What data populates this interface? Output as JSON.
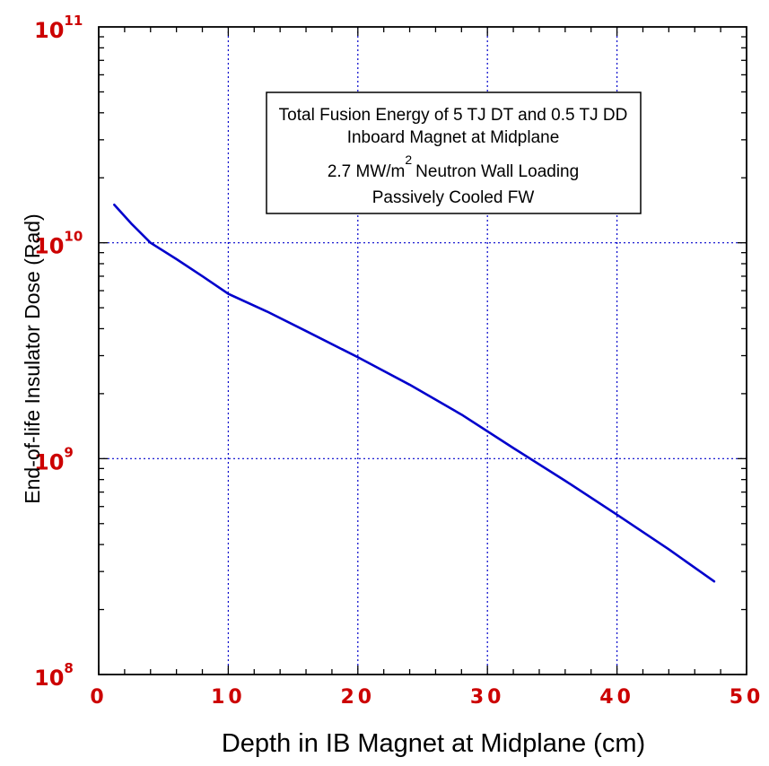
{
  "chart_data": {
    "type": "line",
    "title": "",
    "xlabel": "Depth in IB Magnet at Midplane (cm)",
    "ylabel": "End-of-life Insulator Dose (Rad)",
    "xlim": [
      0,
      50
    ],
    "ylim": [
      100000000.0,
      100000000000.0
    ],
    "yscale": "log",
    "grid": true,
    "x_ticks": [
      "0",
      "10",
      "20",
      "30",
      "40",
      "50"
    ],
    "y_ticks": [
      {
        "value": 100000000000.0,
        "base": "10",
        "exp": "11"
      },
      {
        "value": 10000000000.0,
        "base": "10",
        "exp": "10"
      },
      {
        "value": 1000000000.0,
        "base": "10",
        "exp": "9"
      },
      {
        "value": 100000000.0,
        "base": "10",
        "exp": "8"
      }
    ],
    "series": [
      {
        "color": "#0000cc",
        "x": [
          1.2,
          2.5,
          4.0,
          6.0,
          8.0,
          10.0,
          13.0,
          16.0,
          20.0,
          24.0,
          28.0,
          32.0,
          36.0,
          40.0,
          44.0,
          47.5
        ],
        "y": [
          15000000000.0,
          12300000000.0,
          10000000000.0,
          8400000000.0,
          7000000000.0,
          5800000000.0,
          4800000000.0,
          3900000000.0,
          2950000000.0,
          2200000000.0,
          1600000000.0,
          1120000000.0,
          790000000.0,
          550000000.0,
          380000000.0,
          270000000.0
        ]
      }
    ],
    "annotation": {
      "line1": "Total Fusion Energy of 5 TJ DT and 0.5 TJ DD",
      "line2": "Inboard Magnet at Midplane",
      "line3_pre": "2.7 MW/m",
      "line3_sup": "2",
      "line3_post": "Neutron Wall Loading",
      "line4": "Passively Cooled FW"
    }
  }
}
